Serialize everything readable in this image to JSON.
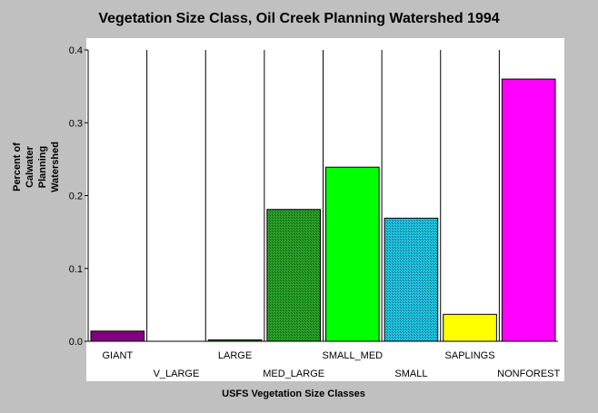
{
  "chart_data": {
    "type": "bar",
    "title": "Vegetation Size Class, Oil Creek Planning Watershed 1994",
    "xlabel": "USFS Vegetation Size Classes",
    "ylabel": "Percent of Calwater Planning Watershed",
    "ylim": [
      0,
      0.4
    ],
    "yticks": [
      "0.0",
      "0.1",
      "0.2",
      "0.3",
      "0.4"
    ],
    "categories": [
      "GIANT",
      "V_LARGE",
      "LARGE",
      "MED_LARGE",
      "SMALL_MED",
      "SMALL",
      "SAPLINGS",
      "NONFOREST"
    ],
    "values": [
      0.014,
      0.0,
      0.002,
      0.181,
      0.239,
      0.169,
      0.037,
      0.36
    ],
    "colors": [
      "#800080",
      "#000000",
      "#008000",
      "#1f8f1f",
      "#00ff00",
      "#1fb3d0",
      "#ffff00",
      "#ff00ff"
    ],
    "patterns": [
      "solid",
      "solid",
      "solid",
      "hatch",
      "solid",
      "hatch",
      "solid",
      "solid"
    ],
    "grid": false
  }
}
